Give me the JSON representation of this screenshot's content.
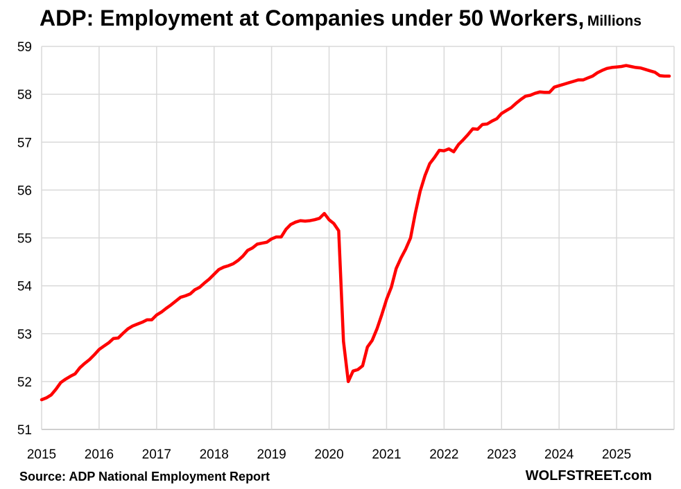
{
  "header": {
    "title": "ADP: Employment at Companies under 50 Workers,",
    "unit": "Millions"
  },
  "footer": {
    "source": "Source: ADP National Employment Report",
    "brand": "WOLFSTREET.com"
  },
  "colors": {
    "line": "#ff0000",
    "grid": "#d9d9d9",
    "axis": "#bfbfbf"
  },
  "chart_data": {
    "type": "line",
    "title": "ADP: Employment at Companies under 50 Workers, Millions",
    "xlabel": "",
    "ylabel": "",
    "xlim": [
      2015,
      2026
    ],
    "ylim": [
      51,
      59
    ],
    "x_ticks": [
      "2015",
      "2016",
      "2017",
      "2018",
      "2019",
      "2020",
      "2021",
      "2022",
      "2023",
      "2024",
      "2025"
    ],
    "y_ticks": [
      51,
      52,
      53,
      54,
      55,
      56,
      57,
      58,
      59
    ],
    "grid": true,
    "legend": "none",
    "series": [
      {
        "x": [
          2015.0,
          2015.083,
          2015.167,
          2015.25,
          2015.333,
          2015.417,
          2015.5,
          2015.583,
          2015.667,
          2015.75,
          2015.833,
          2015.917,
          2016.0,
          2016.083,
          2016.167,
          2016.25,
          2016.333,
          2016.417,
          2016.5,
          2016.583,
          2016.667,
          2016.75,
          2016.833,
          2016.917,
          2017.0,
          2017.083,
          2017.167,
          2017.25,
          2017.333,
          2017.417,
          2017.5,
          2017.583,
          2017.667,
          2017.75,
          2017.833,
          2017.917,
          2018.0,
          2018.083,
          2018.167,
          2018.25,
          2018.333,
          2018.417,
          2018.5,
          2018.583,
          2018.667,
          2018.75,
          2018.833,
          2018.917,
          2019.0,
          2019.083,
          2019.167,
          2019.25,
          2019.333,
          2019.417,
          2019.5,
          2019.583,
          2019.667,
          2019.75,
          2019.833,
          2019.917,
          2020.0,
          2020.083,
          2020.167,
          2020.25,
          2020.333,
          2020.417,
          2020.5,
          2020.583,
          2020.667,
          2020.75,
          2020.833,
          2020.917,
          2021.0,
          2021.083,
          2021.167,
          2021.25,
          2021.333,
          2021.417,
          2021.5,
          2021.583,
          2021.667,
          2021.75,
          2021.833,
          2021.917,
          2022.0,
          2022.083,
          2022.167,
          2022.25,
          2022.333,
          2022.417,
          2022.5,
          2022.583,
          2022.667,
          2022.75,
          2022.833,
          2022.917,
          2023.0,
          2023.083,
          2023.167,
          2023.25,
          2023.333,
          2023.417,
          2023.5,
          2023.583,
          2023.667,
          2023.75,
          2023.833,
          2023.917,
          2024.0,
          2024.083,
          2024.167,
          2024.25,
          2024.333,
          2024.417,
          2024.5,
          2024.583,
          2024.667,
          2024.75,
          2024.833,
          2024.917,
          2025.0,
          2025.083,
          2025.167,
          2025.25,
          2025.333,
          2025.417,
          2025.5,
          2025.583,
          2025.667,
          2025.75,
          2025.833,
          2025.917
        ],
        "values": [
          51.62,
          51.66,
          51.72,
          51.84,
          51.98,
          52.05,
          52.11,
          52.16,
          52.29,
          52.38,
          52.46,
          52.56,
          52.67,
          52.74,
          52.81,
          52.9,
          52.91,
          53.01,
          53.1,
          53.16,
          53.2,
          53.24,
          53.29,
          53.29,
          53.39,
          53.45,
          53.53,
          53.6,
          53.68,
          53.76,
          53.79,
          53.83,
          53.92,
          53.97,
          54.06,
          54.14,
          54.24,
          54.34,
          54.39,
          54.42,
          54.46,
          54.53,
          54.62,
          54.74,
          54.79,
          54.87,
          54.89,
          54.91,
          54.98,
          55.02,
          55.02,
          55.18,
          55.28,
          55.33,
          55.36,
          55.35,
          55.36,
          55.38,
          55.41,
          55.51,
          55.38,
          55.3,
          55.15,
          52.84,
          52.0,
          52.22,
          52.25,
          52.33,
          52.72,
          52.86,
          53.1,
          53.4,
          53.72,
          53.97,
          54.36,
          54.58,
          54.77,
          55.0,
          55.52,
          55.97,
          56.3,
          56.55,
          56.68,
          56.83,
          56.82,
          56.86,
          56.8,
          56.95,
          57.05,
          57.16,
          57.28,
          57.27,
          57.37,
          57.38,
          57.44,
          57.49,
          57.6,
          57.66,
          57.72,
          57.81,
          57.89,
          57.96,
          57.98,
          58.02,
          58.05,
          58.04,
          58.04,
          58.15,
          58.18,
          58.21,
          58.24,
          58.27,
          58.3,
          58.3,
          58.34,
          58.38,
          58.45,
          58.5,
          58.54,
          58.56,
          58.57,
          58.58,
          58.6,
          58.58,
          58.56,
          58.55,
          58.52,
          58.49,
          58.46,
          58.39,
          58.38,
          58.38
        ]
      }
    ]
  }
}
